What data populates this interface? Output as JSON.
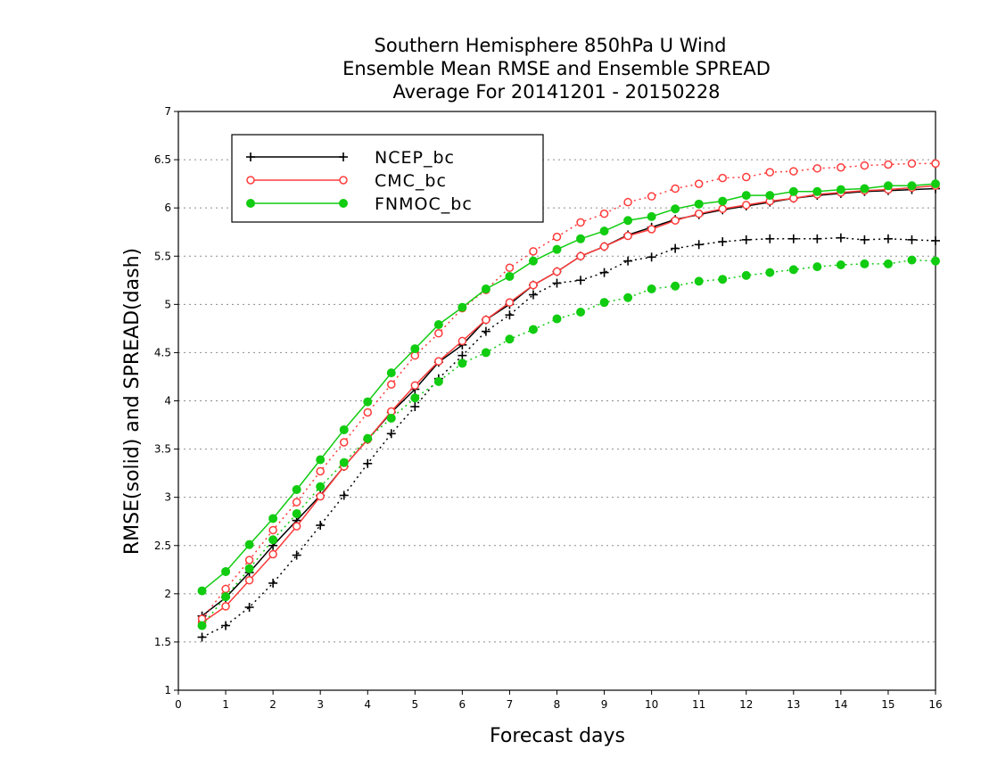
{
  "chart_data": {
    "type": "line",
    "title": [
      "Southern Hemisphere 850hPa U Wind",
      "Ensemble Mean RMSE and Ensemble SPREAD",
      "Average For 20141201 - 20150228"
    ],
    "xlabel": "Forecast days",
    "ylabel": "RMSE(solid) and SPREAD(dash)",
    "xlim": [
      0,
      16
    ],
    "ylim": [
      1,
      7
    ],
    "xticks": [
      "0",
      "1",
      "2",
      "3",
      "4",
      "5",
      "6",
      "7",
      "8",
      "9",
      "10",
      "11",
      "12",
      "13",
      "14",
      "15",
      "16"
    ],
    "yticks": [
      "1",
      "1.5",
      "2",
      "2.5",
      "3",
      "3.5",
      "4",
      "4.5",
      "5",
      "5.5",
      "6",
      "6.5",
      "7"
    ],
    "grid": true,
    "legend_position": "top-left",
    "x": [
      0.5,
      1,
      1.5,
      2,
      2.5,
      3,
      3.5,
      4,
      4.5,
      5,
      5.5,
      6,
      6.5,
      7,
      7.5,
      8,
      8.5,
      9,
      9.5,
      10,
      10.5,
      11,
      11.5,
      12,
      12.5,
      13,
      13.5,
      14,
      14.5,
      15,
      15.5,
      16
    ],
    "series": [
      {
        "name": "NCEP_bc",
        "kind": "rmse",
        "dash": "solid",
        "color": "#000000",
        "marker": "plus",
        "values": [
          1.77,
          1.96,
          2.22,
          2.5,
          2.76,
          3.02,
          3.32,
          3.6,
          3.88,
          4.12,
          4.4,
          4.58,
          4.84,
          5.0,
          5.2,
          5.34,
          5.5,
          5.6,
          5.72,
          5.8,
          5.88,
          5.93,
          5.98,
          6.02,
          6.06,
          6.1,
          6.13,
          6.15,
          6.17,
          6.18,
          6.19,
          6.2
        ]
      },
      {
        "name": "NCEP_bc",
        "kind": "spread",
        "dash": "dotted",
        "color": "#000000",
        "marker": "plus",
        "values": [
          1.55,
          1.67,
          1.86,
          2.11,
          2.4,
          2.71,
          3.02,
          3.35,
          3.66,
          3.94,
          4.23,
          4.47,
          4.72,
          4.89,
          5.1,
          5.22,
          5.25,
          5.33,
          5.45,
          5.49,
          5.58,
          5.62,
          5.65,
          5.67,
          5.68,
          5.68,
          5.68,
          5.69,
          5.67,
          5.68,
          5.67,
          5.66
        ]
      },
      {
        "name": "CMC_bc",
        "kind": "rmse",
        "dash": "solid",
        "color": "#ff3b3b",
        "marker": "open-circle",
        "values": [
          1.7,
          1.87,
          2.14,
          2.41,
          2.7,
          3.01,
          3.32,
          3.6,
          3.89,
          4.16,
          4.41,
          4.62,
          4.84,
          5.02,
          5.2,
          5.34,
          5.5,
          5.6,
          5.71,
          5.78,
          5.87,
          5.94,
          5.99,
          6.03,
          6.07,
          6.1,
          6.14,
          6.16,
          6.18,
          6.19,
          6.21,
          6.23
        ]
      },
      {
        "name": "CMC_bc",
        "kind": "spread",
        "dash": "dotted",
        "color": "#ff3b3b",
        "marker": "open-circle",
        "values": [
          1.74,
          2.05,
          2.35,
          2.66,
          2.95,
          3.27,
          3.57,
          3.88,
          4.17,
          4.47,
          4.7,
          4.96,
          5.15,
          5.38,
          5.55,
          5.7,
          5.85,
          5.94,
          6.06,
          6.12,
          6.2,
          6.25,
          6.31,
          6.32,
          6.37,
          6.38,
          6.41,
          6.42,
          6.44,
          6.45,
          6.46,
          6.46
        ]
      },
      {
        "name": "FNMOC_bc",
        "kind": "rmse",
        "dash": "solid",
        "color": "#11cc11",
        "marker": "filled-circle",
        "values": [
          2.03,
          2.23,
          2.51,
          2.78,
          3.08,
          3.39,
          3.7,
          3.99,
          4.29,
          4.54,
          4.79,
          4.97,
          5.16,
          5.29,
          5.45,
          5.57,
          5.68,
          5.76,
          5.87,
          5.91,
          5.99,
          6.04,
          6.07,
          6.13,
          6.13,
          6.17,
          6.17,
          6.19,
          6.2,
          6.23,
          6.23,
          6.25
        ]
      },
      {
        "name": "FNMOC_bc",
        "kind": "spread",
        "dash": "dotted",
        "color": "#11cc11",
        "marker": "filled-circle",
        "values": [
          1.67,
          1.97,
          2.26,
          2.56,
          2.83,
          3.11,
          3.36,
          3.61,
          3.82,
          4.03,
          4.2,
          4.39,
          4.5,
          4.64,
          4.74,
          4.85,
          4.92,
          5.02,
          5.07,
          5.16,
          5.19,
          5.24,
          5.26,
          5.3,
          5.33,
          5.36,
          5.39,
          5.41,
          5.42,
          5.42,
          5.46,
          5.45
        ]
      }
    ],
    "legend": [
      {
        "label": "NCEP_bc",
        "color": "#000000",
        "marker": "plus"
      },
      {
        "label": "CMC_bc",
        "color": "#ff3b3b",
        "marker": "open-circle"
      },
      {
        "label": "FNMOC_bc",
        "color": "#11cc11",
        "marker": "filled-circle"
      }
    ]
  }
}
